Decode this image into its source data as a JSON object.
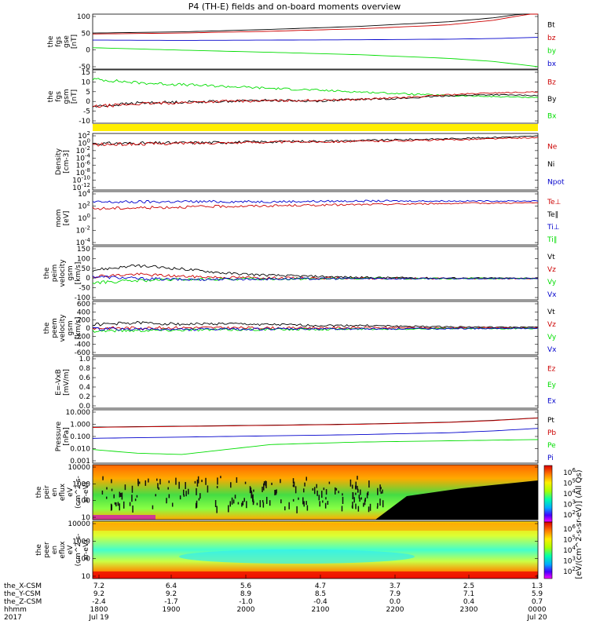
{
  "title": "P4 (TH-E) fields and on-board moments overview",
  "colors": {
    "black": "#000000",
    "red": "#cc0000",
    "green": "#00dd00",
    "blue": "#0000cc",
    "yellow": "#ffee00"
  },
  "chart_data": [
    {
      "type": "line",
      "panel": "fgs-gse",
      "ylabel": [
        "the",
        "fgs",
        "gse",
        "[nT]"
      ],
      "ylim": [
        -80,
        100
      ],
      "yticks": [
        "100",
        "50",
        "0",
        "-50"
      ],
      "legend": [
        {
          "name": "Bt",
          "color": "black"
        },
        {
          "name": "bz",
          "color": "red"
        },
        {
          "name": "by",
          "color": "green"
        },
        {
          "name": "bx",
          "color": "blue"
        }
      ],
      "series": [
        {
          "name": "Bt",
          "color": "black",
          "x": [
            0,
            0.2,
            0.4,
            0.6,
            0.8,
            0.9,
            1.0
          ],
          "y": [
            38,
            42,
            50,
            60,
            75,
            88,
            108
          ]
        },
        {
          "name": "bz",
          "color": "red",
          "x": [
            0,
            0.2,
            0.4,
            0.6,
            0.8,
            0.9,
            1.0
          ],
          "y": [
            35,
            38,
            44,
            52,
            65,
            80,
            105
          ]
        },
        {
          "name": "by",
          "color": "green",
          "x": [
            0,
            0.2,
            0.4,
            0.6,
            0.8,
            0.9,
            1.0
          ],
          "y": [
            -10,
            -18,
            -25,
            -33,
            -45,
            -55,
            -72
          ]
        },
        {
          "name": "bx",
          "color": "blue",
          "x": [
            0,
            0.2,
            0.4,
            0.6,
            0.8,
            0.9,
            1.0
          ],
          "y": [
            15,
            14,
            15,
            16,
            18,
            20,
            24
          ]
        }
      ]
    },
    {
      "type": "line",
      "panel": "fgs-gsm",
      "ylabel": [
        "the",
        "fgs",
        "gsm",
        "[nT]"
      ],
      "ylim": [
        -14,
        15
      ],
      "yticks": [
        "15",
        "10",
        "5",
        "0",
        "-5",
        "-10"
      ],
      "legend": [
        {
          "name": "Bz",
          "color": "red"
        },
        {
          "name": "By",
          "color": "black"
        },
        {
          "name": "Bx",
          "color": "green"
        }
      ],
      "series": [
        {
          "name": "Bx",
          "color": "green",
          "x": [
            0,
            0.1,
            0.2,
            0.3,
            0.4,
            0.5,
            0.6,
            0.7,
            0.8,
            0.9,
            1.0
          ],
          "y": [
            10,
            8,
            7,
            6,
            5,
            4,
            3,
            2,
            1,
            0.5,
            0
          ]
        },
        {
          "name": "By",
          "color": "black",
          "x": [
            0,
            0.1,
            0.2,
            0.3,
            0.4,
            0.5,
            0.6,
            0.7,
            0.8,
            0.9,
            1.0
          ],
          "y": [
            -5,
            -3,
            -2.5,
            -2,
            -1.5,
            -2,
            -1,
            -0.5,
            1,
            1.5,
            1
          ]
        },
        {
          "name": "Bz",
          "color": "red",
          "x": [
            0,
            0.1,
            0.2,
            0.3,
            0.4,
            0.5,
            0.6,
            0.7,
            0.8,
            0.9,
            1.0
          ],
          "y": [
            -5,
            -3.5,
            -2.8,
            -2,
            -1.8,
            -1.5,
            -1,
            0,
            1.5,
            2.5,
            3
          ]
        }
      ]
    },
    {
      "type": "line",
      "panel": "density",
      "ylabel": [
        "Density",
        "[cm-3]"
      ],
      "ylim": [
        -12,
        3
      ],
      "yscale": "log",
      "yticks": [
        "10^2",
        "10^0",
        "10^-2",
        "10^-4",
        "10^-6",
        "10^-8",
        "10^-10",
        "10^-12"
      ],
      "legend": [
        {
          "name": "Ne",
          "color": "red"
        },
        {
          "name": "Ni",
          "color": "black"
        },
        {
          "name": "Npot",
          "color": "blue"
        }
      ],
      "series": [
        {
          "name": "Ni",
          "color": "black",
          "x": [
            0,
            0.2,
            0.4,
            0.6,
            0.8,
            1.0
          ],
          "y": [
            0.3,
            0.5,
            0.8,
            1.1,
            1.6,
            2.3
          ]
        },
        {
          "name": "Ne",
          "color": "red",
          "x": [
            0,
            0.2,
            0.4,
            0.6,
            0.8,
            1.0
          ],
          "y": [
            0,
            0.4,
            0.7,
            0.9,
            1.3,
            1.9
          ]
        }
      ]
    },
    {
      "type": "line",
      "panel": "temperature",
      "ylabel": [
        "mom",
        "[eV]"
      ],
      "ylim": [
        -4,
        5
      ],
      "yscale": "log",
      "yticks": [
        "10^4",
        "10^2",
        "10^0",
        "10^-2",
        "10^-4"
      ],
      "legend": [
        {
          "name": "Te⊥",
          "color": "red"
        },
        {
          "name": "Te∥",
          "color": "black"
        },
        {
          "name": "Ti⊥",
          "color": "blue"
        },
        {
          "name": "Ti∥",
          "color": "green"
        }
      ],
      "series": [
        {
          "name": "Ti⊥",
          "color": "blue",
          "x": [
            0,
            0.2,
            0.4,
            0.6,
            0.8,
            1.0
          ],
          "y": [
            3.2,
            3.3,
            3.3,
            3.4,
            3.4,
            3.4
          ]
        },
        {
          "name": "Te⊥",
          "color": "red",
          "x": [
            0,
            0.2,
            0.4,
            0.6,
            0.8,
            1.0
          ],
          "y": [
            2.1,
            2.4,
            2.6,
            2.8,
            3.0,
            3.1
          ]
        }
      ]
    },
    {
      "type": "line",
      "panel": "peim-velocity",
      "ylabel": [
        "the",
        "peim",
        "velocity",
        "gsm",
        "[km/s]"
      ],
      "ylim": [
        -100,
        150
      ],
      "yticks": [
        "150",
        "100",
        "50",
        "0",
        "-50",
        "-100"
      ],
      "legend": [
        {
          "name": "Vt",
          "color": "black"
        },
        {
          "name": "Vz",
          "color": "red"
        },
        {
          "name": "Vy",
          "color": "green"
        },
        {
          "name": "Vx",
          "color": "blue"
        }
      ],
      "series": [
        {
          "name": "Vt",
          "color": "black",
          "x": [
            0,
            0.1,
            0.2,
            0.3,
            0.4,
            0.5,
            0.6,
            0.8,
            1.0
          ],
          "y": [
            40,
            60,
            45,
            25,
            15,
            10,
            5,
            2,
            2
          ]
        },
        {
          "name": "Vz",
          "color": "red",
          "x": [
            0,
            0.1,
            0.2,
            0.3,
            0.4,
            0.5,
            0.6,
            0.8,
            1.0
          ],
          "y": [
            10,
            20,
            10,
            5,
            3,
            2,
            1,
            0,
            0
          ]
        },
        {
          "name": "Vy",
          "color": "green",
          "x": [
            0,
            0.1,
            0.2,
            0.3,
            0.4,
            0.5,
            0.6,
            0.8,
            1.0
          ],
          "y": [
            -20,
            -10,
            -5,
            -3,
            -2,
            -1,
            0,
            0,
            0
          ]
        },
        {
          "name": "Vx",
          "color": "blue",
          "x": [
            0,
            0.1,
            0.2,
            0.3,
            0.4,
            0.5,
            0.6,
            0.8,
            1.0
          ],
          "y": [
            10,
            0,
            -5,
            -3,
            -2,
            -1,
            0,
            0,
            0
          ]
        }
      ]
    },
    {
      "type": "line",
      "panel": "peem-velocity",
      "ylabel": [
        "the",
        "peem",
        "velocity",
        "gsm",
        "[km/s]"
      ],
      "ylim": [
        -600,
        600
      ],
      "yticks": [
        "600",
        "400",
        "200",
        "0",
        "-200",
        "-400",
        "-600"
      ],
      "legend": [
        {
          "name": "Vt",
          "color": "black"
        },
        {
          "name": "Vz",
          "color": "red"
        },
        {
          "name": "Vy",
          "color": "green"
        },
        {
          "name": "Vx",
          "color": "blue"
        }
      ],
      "series": [
        {
          "name": "Vt",
          "color": "black",
          "x": [
            0,
            0.1,
            0.2,
            0.3,
            0.4,
            0.5,
            0.6,
            0.7,
            0.8,
            0.9,
            1.0
          ],
          "y": [
            80,
            120,
            90,
            100,
            80,
            60,
            60,
            40,
            30,
            20,
            20
          ]
        },
        {
          "name": "Vz",
          "color": "red",
          "x": [
            0,
            0.2,
            0.4,
            0.6,
            0.8,
            1.0
          ],
          "y": [
            0,
            10,
            5,
            10,
            5,
            5
          ]
        },
        {
          "name": "Vy",
          "color": "green",
          "x": [
            0,
            0.2,
            0.4,
            0.6,
            0.8,
            1.0
          ],
          "y": [
            -60,
            -40,
            -30,
            -20,
            -10,
            -10
          ]
        },
        {
          "name": "Vx",
          "color": "blue",
          "x": [
            0,
            0.2,
            0.4,
            0.6,
            0.8,
            1.0
          ],
          "y": [
            -20,
            -30,
            -20,
            -15,
            -10,
            -5
          ]
        }
      ]
    },
    {
      "type": "line",
      "panel": "efield",
      "ylabel": [
        "E=-VxB",
        "[mV/m]"
      ],
      "ylim": [
        0,
        1
      ],
      "yticks": [
        "1.0",
        "0.8",
        "0.6",
        "0.4",
        "0.2",
        "0.0"
      ],
      "legend": [
        {
          "name": "Ez",
          "color": "red"
        },
        {
          "name": "Ey",
          "color": "green"
        },
        {
          "name": "Ex",
          "color": "blue"
        }
      ],
      "series": []
    },
    {
      "type": "line",
      "panel": "pressure",
      "ylabel": [
        "Pressure",
        "[nPa]"
      ],
      "ylim": [
        -3,
        1.3
      ],
      "yscale": "log",
      "yticks": [
        "10.000",
        "1.000",
        "0.100",
        "0.010",
        "0.001"
      ],
      "legend": [
        {
          "name": "Pt",
          "color": "black"
        },
        {
          "name": "Pb",
          "color": "red"
        },
        {
          "name": "Pe",
          "color": "green"
        },
        {
          "name": "Pi",
          "color": "blue"
        }
      ],
      "series": [
        {
          "name": "Pt",
          "color": "black",
          "x": [
            0,
            0.2,
            0.4,
            0.6,
            0.8,
            0.9,
            1.0
          ],
          "y": [
            -0.1,
            -0.02,
            0.06,
            0.15,
            0.3,
            0.45,
            0.65
          ]
        },
        {
          "name": "Pb",
          "color": "red",
          "x": [
            0,
            0.2,
            0.4,
            0.6,
            0.8,
            0.9,
            1.0
          ],
          "y": [
            -0.12,
            -0.04,
            0.04,
            0.13,
            0.28,
            0.43,
            0.63
          ]
        },
        {
          "name": "Pi",
          "color": "blue",
          "x": [
            0,
            0.2,
            0.4,
            0.6,
            0.8,
            0.9,
            1.0
          ],
          "y": [
            -1.0,
            -0.9,
            -0.8,
            -0.7,
            -0.55,
            -0.4,
            -0.2
          ]
        },
        {
          "name": "Pe",
          "color": "green",
          "x": [
            0,
            0.1,
            0.2,
            0.3,
            0.4,
            0.6,
            0.8,
            1.0
          ],
          "y": [
            -1.9,
            -2.2,
            -2.3,
            -1.9,
            -1.5,
            -1.3,
            -1.2,
            -1.1
          ]
        }
      ]
    },
    {
      "type": "heatmap",
      "panel": "peir-spectrogram",
      "ylabel": [
        "the",
        "peir",
        "en",
        "eflux",
        "eV",
        "(cm^2-s-",
        "sr-eV)"
      ],
      "yscale": "log",
      "yticks": [
        "10000",
        "1000",
        "100",
        "10"
      ]
    },
    {
      "type": "heatmap",
      "panel": "peer-spectrogram",
      "ylabel": [
        "the",
        "peer",
        "en",
        "eflux",
        "eV",
        "(cm^2-s-",
        "sr-eV)"
      ],
      "yscale": "log",
      "yticks": [
        "10000",
        "1000",
        "100",
        "10"
      ]
    }
  ],
  "colorbar": {
    "label": "[eV/(cm^2-s-sr-eV)] (All Qs)",
    "ticks_top": [
      "10^6",
      "10^5",
      "10^4",
      "10^3",
      "10^2"
    ],
    "ticks_bottom": [
      "10^6",
      "10^5",
      "10^4",
      "10^3",
      "10^2"
    ]
  },
  "xaxis": {
    "rows": [
      {
        "label": "the_X-CSM",
        "values": [
          "7.2",
          "6.4",
          "5.6",
          "4.7",
          "3.7",
          "2.5",
          "1.3"
        ]
      },
      {
        "label": "the_Y-CSM",
        "values": [
          "9.2",
          "9.2",
          "8.9",
          "8.5",
          "7.9",
          "7.1",
          "5.9"
        ]
      },
      {
        "label": "the_Z-CSM",
        "values": [
          "-2.4",
          "-1.7",
          "-1.0",
          "-0.4",
          "0.0",
          "0.4",
          "0.7"
        ]
      },
      {
        "label": "hhmm",
        "values": [
          "1800",
          "1900",
          "2000",
          "2100",
          "2200",
          "2300",
          "0000"
        ]
      }
    ],
    "year": "2017",
    "date_start": "Jul 19",
    "date_end": "Jul 20"
  }
}
